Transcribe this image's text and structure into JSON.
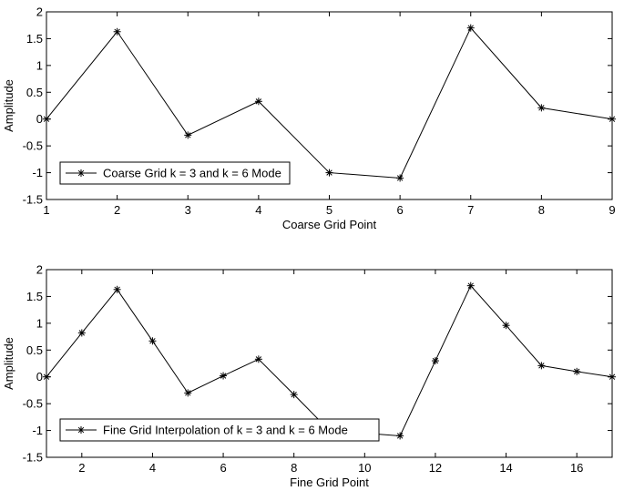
{
  "chart_data": [
    {
      "type": "line",
      "title": "",
      "xlabel": "Coarse Grid Point",
      "ylabel": "Amplitude",
      "xlim": [
        1,
        9
      ],
      "ylim": [
        -1.5,
        2
      ],
      "xticks": [
        1,
        2,
        3,
        4,
        5,
        6,
        7,
        8,
        9
      ],
      "xtick_labels": [
        "1",
        "2",
        "3",
        "4",
        "5",
        "6",
        "7",
        "8",
        "9"
      ],
      "yticks": [
        -1.5,
        -1,
        -0.5,
        0,
        0.5,
        1,
        1.5,
        2
      ],
      "ytick_labels": [
        "-1.5",
        "-1",
        "-0.5",
        "0",
        "0.5",
        "1",
        "1.5",
        "2"
      ],
      "grid": false,
      "legend": "bottom-left",
      "series": [
        {
          "name": "Coarse Grid k = 3 and k = 6 Mode",
          "marker": "asterisk",
          "color": "#000000",
          "x": [
            1,
            2,
            3,
            4,
            5,
            6,
            7,
            8,
            9
          ],
          "values": [
            0,
            1.63,
            -0.3,
            0.33,
            -1.0,
            -1.1,
            1.7,
            0.21,
            0
          ]
        }
      ]
    },
    {
      "type": "line",
      "title": "",
      "xlabel": "Fine Grid Point",
      "ylabel": "Amplitude",
      "xlim": [
        1,
        17
      ],
      "ylim": [
        -1.5,
        2
      ],
      "xticks": [
        2,
        4,
        6,
        8,
        10,
        12,
        14,
        16
      ],
      "xtick_labels": [
        "2",
        "4",
        "6",
        "8",
        "10",
        "12",
        "14",
        "16"
      ],
      "yticks": [
        -1.5,
        -1,
        -0.5,
        0,
        0.5,
        1,
        1.5,
        2
      ],
      "ytick_labels": [
        "-1.5",
        "-1",
        "-0.5",
        "0",
        "0.5",
        "1",
        "1.5",
        "2"
      ],
      "grid": false,
      "legend": "bottom-left",
      "series": [
        {
          "name": "Fine Grid Interpolation of k = 3 and k = 6 Mode",
          "marker": "asterisk",
          "color": "#000000",
          "x": [
            1,
            2,
            3,
            4,
            5,
            6,
            7,
            8,
            9,
            10,
            11,
            12,
            13,
            14,
            15,
            16,
            17
          ],
          "values": [
            0,
            0.82,
            1.63,
            0.67,
            -0.3,
            0.02,
            0.33,
            -0.33,
            -1.0,
            -1.05,
            -1.1,
            0.3,
            1.7,
            0.96,
            0.21,
            0.1,
            0
          ]
        }
      ]
    }
  ]
}
